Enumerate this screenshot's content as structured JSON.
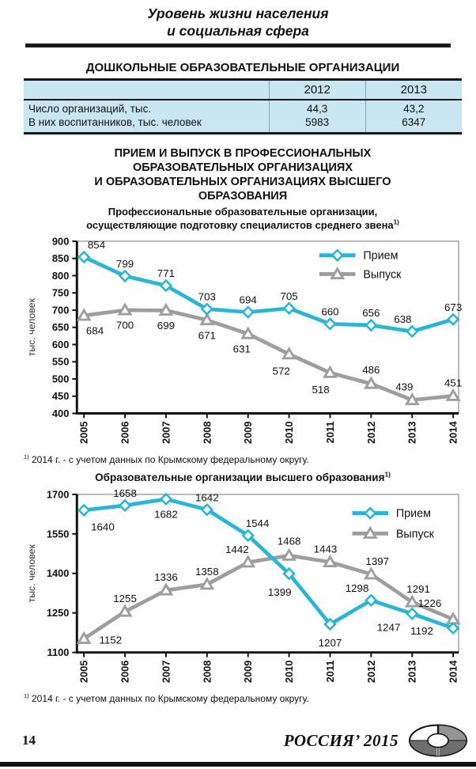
{
  "header": {
    "line1": "Уровень жизни населения",
    "line2": "и социальная сфера"
  },
  "preschool": {
    "title": "ДОШКОЛЬНЫЕ ОБРАЗОВАТЕЛЬНЫЕ ОРГАНИЗАЦИИ",
    "col_headers": [
      "2012",
      "2013"
    ],
    "rows": [
      {
        "label": "Число организаций, тыс.",
        "values": [
          "44,3",
          "43,2"
        ]
      },
      {
        "label": "В них воспитанников, тыс. человек",
        "values": [
          "5983",
          "6347"
        ]
      }
    ]
  },
  "section_title": {
    "line1": "ПРИЕМ И ВЫПУСК В ПРОФЕССИОНАЛЬНЫХ",
    "line2": "ОБРАЗОВАТЕЛЬНЫХ ОРГАНИЗАЦИЯХ",
    "line3": "И ОБРАЗОВАТЕЛЬНЫХ ОРГАНИЗАЦИЯХ ВЫСШЕГО",
    "line4": "ОБРАЗОВАНИЯ"
  },
  "chart1": {
    "subtitle_line1": "Профессиональные образовательные организации,",
    "subtitle_line2": "осуществляющие подготовку специалистов среднего звена",
    "subtitle_sup": "1)",
    "footnote_sup": "1)",
    "footnote": "2014 г. - с учетом данных по Крымскому федеральному округу."
  },
  "chart2": {
    "title": "Образовательные организации высшего образования",
    "title_sup": "1)",
    "footnote_sup": "1)",
    "footnote": "2014 г. - с учетом данных по Крымскому федеральному округу."
  },
  "footer": {
    "page_number": "14",
    "edition": "РОССИЯ’ 2015"
  },
  "chart_data": [
    {
      "type": "line",
      "title": "Профессиональные образовательные организации, осуществляющие подготовку специалистов среднего звена 1)",
      "ylabel": "тыс. человек",
      "xlabel": "",
      "x": [
        "2005",
        "2006",
        "2007",
        "2008",
        "2009",
        "2010",
        "2011",
        "2012",
        "2013",
        "2014"
      ],
      "ylim": [
        400,
        900
      ],
      "yticks": [
        400,
        450,
        500,
        550,
        600,
        650,
        700,
        750,
        800,
        850,
        900
      ],
      "grid": false,
      "legend_position": "top-right-inside",
      "series": [
        {
          "name": "Прием",
          "marker": "diamond",
          "color": "#29b5d8",
          "values": [
            854,
            799,
            771,
            703,
            694,
            705,
            660,
            656,
            638,
            673
          ],
          "label_offsets": [
            [
              16,
              -11
            ],
            [
              0,
              -11
            ],
            [
              0,
              -11
            ],
            [
              0,
              -11
            ],
            [
              0,
              -11
            ],
            [
              0,
              -11
            ],
            [
              0,
              -11
            ],
            [
              0,
              -11
            ],
            [
              -12,
              -11
            ],
            [
              0,
              -11
            ]
          ]
        },
        {
          "name": "Выпуск",
          "marker": "triangle",
          "color": "#9e9e9e",
          "values": [
            684,
            700,
            699,
            671,
            631,
            572,
            518,
            486,
            439,
            451
          ],
          "label_offsets": [
            [
              14,
              24
            ],
            [
              0,
              24
            ],
            [
              0,
              24
            ],
            [
              0,
              24
            ],
            [
              -8,
              24
            ],
            [
              -10,
              26
            ],
            [
              -12,
              26
            ],
            [
              0,
              -13
            ],
            [
              -10,
              -12
            ],
            [
              0,
              -12
            ]
          ]
        }
      ]
    },
    {
      "type": "line",
      "title": "Образовательные организации высшего образования 1)",
      "ylabel": "тыс. человек",
      "xlabel": "",
      "x": [
        "2005",
        "2006",
        "2007",
        "2008",
        "2009",
        "2010",
        "2011",
        "2012",
        "2013",
        "2014"
      ],
      "ylim": [
        1100,
        1700
      ],
      "yticks": [
        1100,
        1250,
        1400,
        1550,
        1700
      ],
      "grid": false,
      "legend_position": "top-right-inside",
      "series": [
        {
          "name": "Прием",
          "marker": "diamond",
          "color": "#29b5d8",
          "values": [
            1640,
            1658,
            1682,
            1642,
            1544,
            1399,
            1207,
            1298,
            1247,
            1192
          ],
          "label_offsets": [
            [
              24,
              26
            ],
            [
              0,
              -11
            ],
            [
              0,
              24
            ],
            [
              0,
              -11
            ],
            [
              12,
              -11
            ],
            [
              -12,
              28
            ],
            [
              0,
              28
            ],
            [
              -18,
              -11
            ],
            [
              -30,
              22
            ],
            [
              -40,
              8
            ]
          ]
        },
        {
          "name": "Выпуск",
          "marker": "triangle",
          "color": "#9e9e9e",
          "values": [
            1152,
            1255,
            1336,
            1358,
            1442,
            1468,
            1443,
            1397,
            1291,
            1226
          ],
          "label_offsets": [
            [
              34,
              6
            ],
            [
              0,
              -12
            ],
            [
              0,
              -12
            ],
            [
              0,
              -12
            ],
            [
              -14,
              -12
            ],
            [
              0,
              -14
            ],
            [
              -6,
              -12
            ],
            [
              8,
              -12
            ],
            [
              8,
              -12
            ],
            [
              -30,
              -16
            ]
          ]
        }
      ]
    }
  ]
}
